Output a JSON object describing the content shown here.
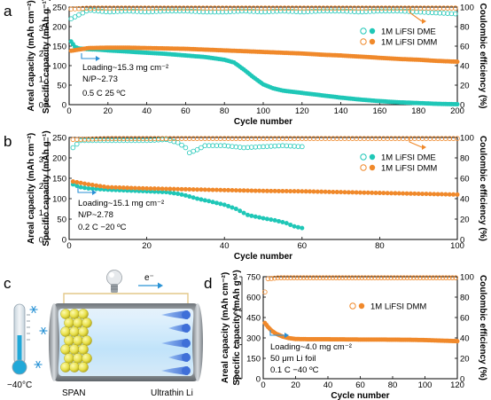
{
  "panels": {
    "a": "a",
    "b": "b",
    "c": "c",
    "d": "d"
  },
  "colors": {
    "dme": "#1fc7b7",
    "dmm": "#f0892b"
  },
  "legend": {
    "dme": "1M LiFSI DME",
    "dmm": "1M LiFSI DMM"
  },
  "axis_labels": {
    "areal": "Areal capacity (mAh cm⁻²)",
    "specific": "Specific capacity (mAh g⁻¹)",
    "ce": "Coulombic efficiency (%)",
    "cycle": "Cycle number"
  },
  "annotations": {
    "a": [
      "Loading~15.3 mg cm⁻²",
      "N/P~2.73",
      "0.5 C    25 ºC"
    ],
    "b": [
      "Loading~15.1 mg cm⁻²",
      "N/P~2.78",
      "0.2 C    −20 ºC"
    ],
    "d": [
      "Loading~4.0 mg cm⁻²",
      "50 μm Li foil",
      "0.1 C    −40 ºC"
    ]
  },
  "schematic": {
    "temperature": "−40°C",
    "cathode": "SPAN",
    "anode": "Ultrathin Li",
    "electron": "e⁻",
    "icons": [
      "thermometer-icon",
      "snowflake-icon",
      "lightbulb-icon",
      "arrow-right-icon"
    ]
  },
  "chart_data": [
    {
      "id": "a",
      "type": "scatter",
      "xlabel": "Cycle number",
      "ylabel_left_outer": "Areal capacity (mAh cm⁻²)",
      "ylabel_left": "Specific capacity (mAh g⁻¹)",
      "ylabel_right": "Coulombic efficiency (%)",
      "xlim": [
        0,
        200
      ],
      "ylim": [
        0,
        250
      ],
      "ylim_right": [
        0,
        100
      ],
      "ylim_areal": [
        0,
        3.82
      ],
      "xticks": [
        0,
        20,
        40,
        60,
        80,
        100,
        120,
        140,
        160,
        180,
        200
      ],
      "yticks": [
        0,
        50,
        100,
        150,
        200,
        250
      ],
      "yticks_right": [
        0,
        20,
        40,
        60,
        80,
        100
      ],
      "yticks_areal": [
        0,
        1,
        2,
        3
      ],
      "legend_position": "right",
      "series": [
        {
          "name": "1M LiFSI DME",
          "capacity_points": [
            [
              1,
              162
            ],
            [
              3,
              148
            ],
            [
              5,
              144
            ],
            [
              10,
              142
            ],
            [
              15,
              141
            ],
            [
              20,
              139
            ],
            [
              30,
              136
            ],
            [
              40,
              133
            ],
            [
              50,
              130
            ],
            [
              60,
              126
            ],
            [
              70,
              122
            ],
            [
              80,
              115
            ],
            [
              85,
              108
            ],
            [
              90,
              90
            ],
            [
              95,
              70
            ],
            [
              100,
              52
            ],
            [
              105,
              42
            ],
            [
              110,
              36
            ],
            [
              120,
              30
            ],
            [
              130,
              24
            ],
            [
              140,
              18
            ],
            [
              150,
              13
            ],
            [
              160,
              9
            ],
            [
              170,
              6
            ],
            [
              180,
              4
            ],
            [
              190,
              2
            ],
            [
              200,
              1
            ]
          ],
          "ce_points": [
            [
              1,
              88
            ],
            [
              10,
              97
            ],
            [
              20,
              95
            ],
            [
              30,
              96
            ],
            [
              40,
              95
            ],
            [
              50,
              96
            ],
            [
              60,
              96
            ],
            [
              70,
              95
            ],
            [
              80,
              95
            ],
            [
              90,
              96
            ],
            [
              100,
              95
            ],
            [
              110,
              96
            ],
            [
              120,
              95
            ],
            [
              130,
              96
            ],
            [
              140,
              96
            ],
            [
              150,
              95
            ],
            [
              160,
              96
            ],
            [
              170,
              96
            ],
            [
              180,
              95
            ],
            [
              190,
              94
            ],
            [
              200,
              93
            ]
          ]
        },
        {
          "name": "1M LiFSI DMM",
          "capacity_points": [
            [
              1,
              138
            ],
            [
              10,
              145
            ],
            [
              20,
              146
            ],
            [
              30,
              146
            ],
            [
              40,
              145
            ],
            [
              50,
              144
            ],
            [
              60,
              143
            ],
            [
              70,
              141
            ],
            [
              80,
              139
            ],
            [
              90,
              137
            ],
            [
              100,
              135
            ],
            [
              110,
              133
            ],
            [
              120,
              131
            ],
            [
              130,
              128
            ],
            [
              140,
              126
            ],
            [
              150,
              123
            ],
            [
              160,
              120
            ],
            [
              170,
              117
            ],
            [
              180,
              115
            ],
            [
              190,
              112
            ],
            [
              200,
              110
            ]
          ],
          "ce_points": [
            [
              1,
              98
            ],
            [
              10,
              99
            ],
            [
              50,
              99
            ],
            [
              100,
              99
            ],
            [
              150,
              99
            ],
            [
              200,
              99
            ]
          ]
        }
      ]
    },
    {
      "id": "b",
      "type": "scatter",
      "xlabel": "Cycle number",
      "ylabel_left_outer": "Areal capacity (mAh cm⁻²)",
      "ylabel_left": "Specific capacity (mAh g⁻¹)",
      "ylabel_right": "Coulombic efficiency (%)",
      "xlim": [
        0,
        100
      ],
      "ylim": [
        0,
        250
      ],
      "ylim_right": [
        0,
        100
      ],
      "ylim_areal": [
        0,
        3.82
      ],
      "xticks": [
        0,
        20,
        40,
        60,
        80,
        100
      ],
      "yticks": [
        0,
        50,
        100,
        150,
        200,
        250
      ],
      "yticks_right": [
        0,
        20,
        40,
        60,
        80,
        100
      ],
      "yticks_areal": [
        0,
        1,
        2,
        3
      ],
      "legend_position": "right",
      "series": [
        {
          "name": "1M LiFSI DME",
          "capacity_points": [
            [
              1,
              135
            ],
            [
              3,
              128
            ],
            [
              5,
              125
            ],
            [
              10,
              122
            ],
            [
              15,
              120
            ],
            [
              20,
              118
            ],
            [
              25,
              116
            ],
            [
              28,
              112
            ],
            [
              30,
              108
            ],
            [
              33,
              100
            ],
            [
              36,
              94
            ],
            [
              40,
              85
            ],
            [
              43,
              75
            ],
            [
              46,
              60
            ],
            [
              50,
              52
            ],
            [
              53,
              47
            ],
            [
              56,
              40
            ],
            [
              58,
              32
            ],
            [
              60,
              28
            ]
          ],
          "ce_points": [
            [
              1,
              90
            ],
            [
              3,
              97
            ],
            [
              10,
              97
            ],
            [
              20,
              97
            ],
            [
              25,
              98
            ],
            [
              28,
              95
            ],
            [
              30,
              90
            ],
            [
              31,
              85
            ],
            [
              33,
              88
            ],
            [
              35,
              92
            ],
            [
              40,
              92
            ],
            [
              45,
              90
            ],
            [
              50,
              91
            ],
            [
              55,
              92
            ],
            [
              60,
              91
            ]
          ]
        },
        {
          "name": "1M LiFSI DMM",
          "capacity_points": [
            [
              1,
              142
            ],
            [
              5,
              135
            ],
            [
              10,
              128
            ],
            [
              20,
              125
            ],
            [
              30,
              123
            ],
            [
              40,
              121
            ],
            [
              50,
              119
            ],
            [
              60,
              118
            ],
            [
              70,
              116
            ],
            [
              80,
              114
            ],
            [
              90,
              112
            ],
            [
              100,
              110
            ]
          ],
          "ce_points": [
            [
              1,
              98
            ],
            [
              10,
              99
            ],
            [
              50,
              99
            ],
            [
              100,
              99
            ]
          ]
        }
      ]
    },
    {
      "id": "d",
      "type": "scatter",
      "xlabel": "Cycle number",
      "ylabel_left_outer": "Areal capacity (mAh cm⁻²)",
      "ylabel_left": "Specific capacity (mAh g⁻¹)",
      "ylabel_right": "Coulombic efficiency (%)",
      "xlim": [
        0,
        120
      ],
      "ylim": [
        0,
        750
      ],
      "ylim_right": [
        0,
        100
      ],
      "ylim_areal": [
        0,
        3.0
      ],
      "xticks": [
        0,
        20,
        40,
        60,
        80,
        100,
        120
      ],
      "yticks": [
        0,
        150,
        300,
        450,
        600,
        750
      ],
      "yticks_right": [
        0,
        20,
        40,
        60,
        80,
        100
      ],
      "yticks_areal": [
        0,
        1,
        2,
        3
      ],
      "legend_position": "right",
      "series": [
        {
          "name": "1M LiFSI DMM",
          "capacity_points": [
            [
              1,
              410
            ],
            [
              3,
              380
            ],
            [
              5,
              355
            ],
            [
              8,
              330
            ],
            [
              12,
              310
            ],
            [
              16,
              298
            ],
            [
              20,
              292
            ],
            [
              30,
              290
            ],
            [
              40,
              290
            ],
            [
              50,
              289
            ],
            [
              60,
              288
            ],
            [
              70,
              288
            ],
            [
              80,
              287
            ],
            [
              90,
              286
            ],
            [
              100,
              284
            ],
            [
              110,
              280
            ],
            [
              120,
              276
            ]
          ],
          "ce_points": [
            [
              1,
              85
            ],
            [
              3,
              98
            ],
            [
              10,
              99
            ],
            [
              50,
              99
            ],
            [
              100,
              99
            ],
            [
              120,
              99
            ]
          ]
        }
      ]
    }
  ]
}
